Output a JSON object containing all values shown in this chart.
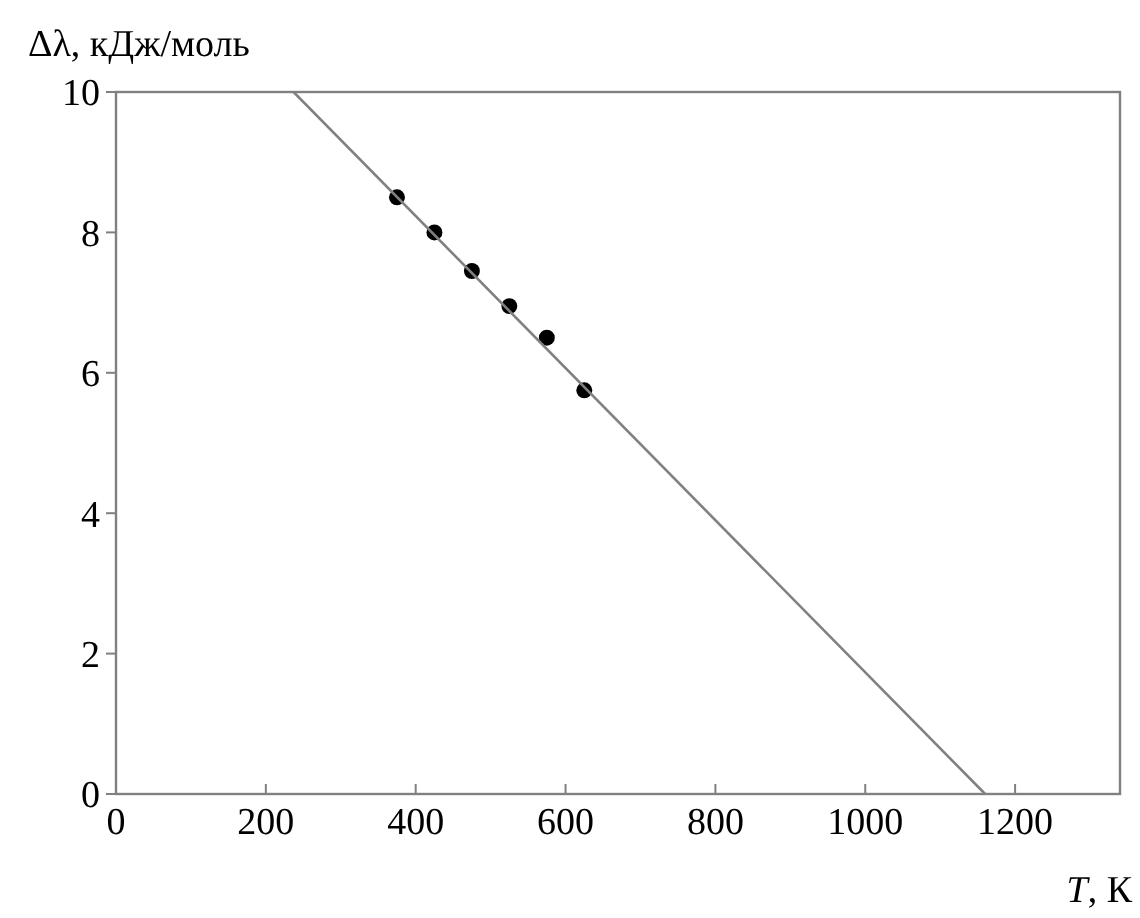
{
  "chart_data": {
    "type": "scatter",
    "xlabel": "T, К",
    "ylabel": "Δλ, кДж/моль",
    "xlim": [
      0,
      1340
    ],
    "ylim": [
      0,
      10
    ],
    "xticks": [
      0,
      200,
      400,
      600,
      800,
      1000,
      1200
    ],
    "yticks": [
      0,
      2,
      4,
      6,
      8,
      10
    ],
    "grid": false,
    "marker": "circle",
    "series": [
      {
        "color": "#000000",
        "x": [
          375,
          425,
          475,
          525,
          575,
          625
        ],
        "values": [
          8.5,
          8.0,
          7.45,
          6.95,
          6.5,
          5.75
        ]
      },
      {
        "type": "line",
        "color": "#808080",
        "marker": "none",
        "x": [
          237,
          1160
        ],
        "values": [
          10,
          0
        ]
      }
    ]
  }
}
